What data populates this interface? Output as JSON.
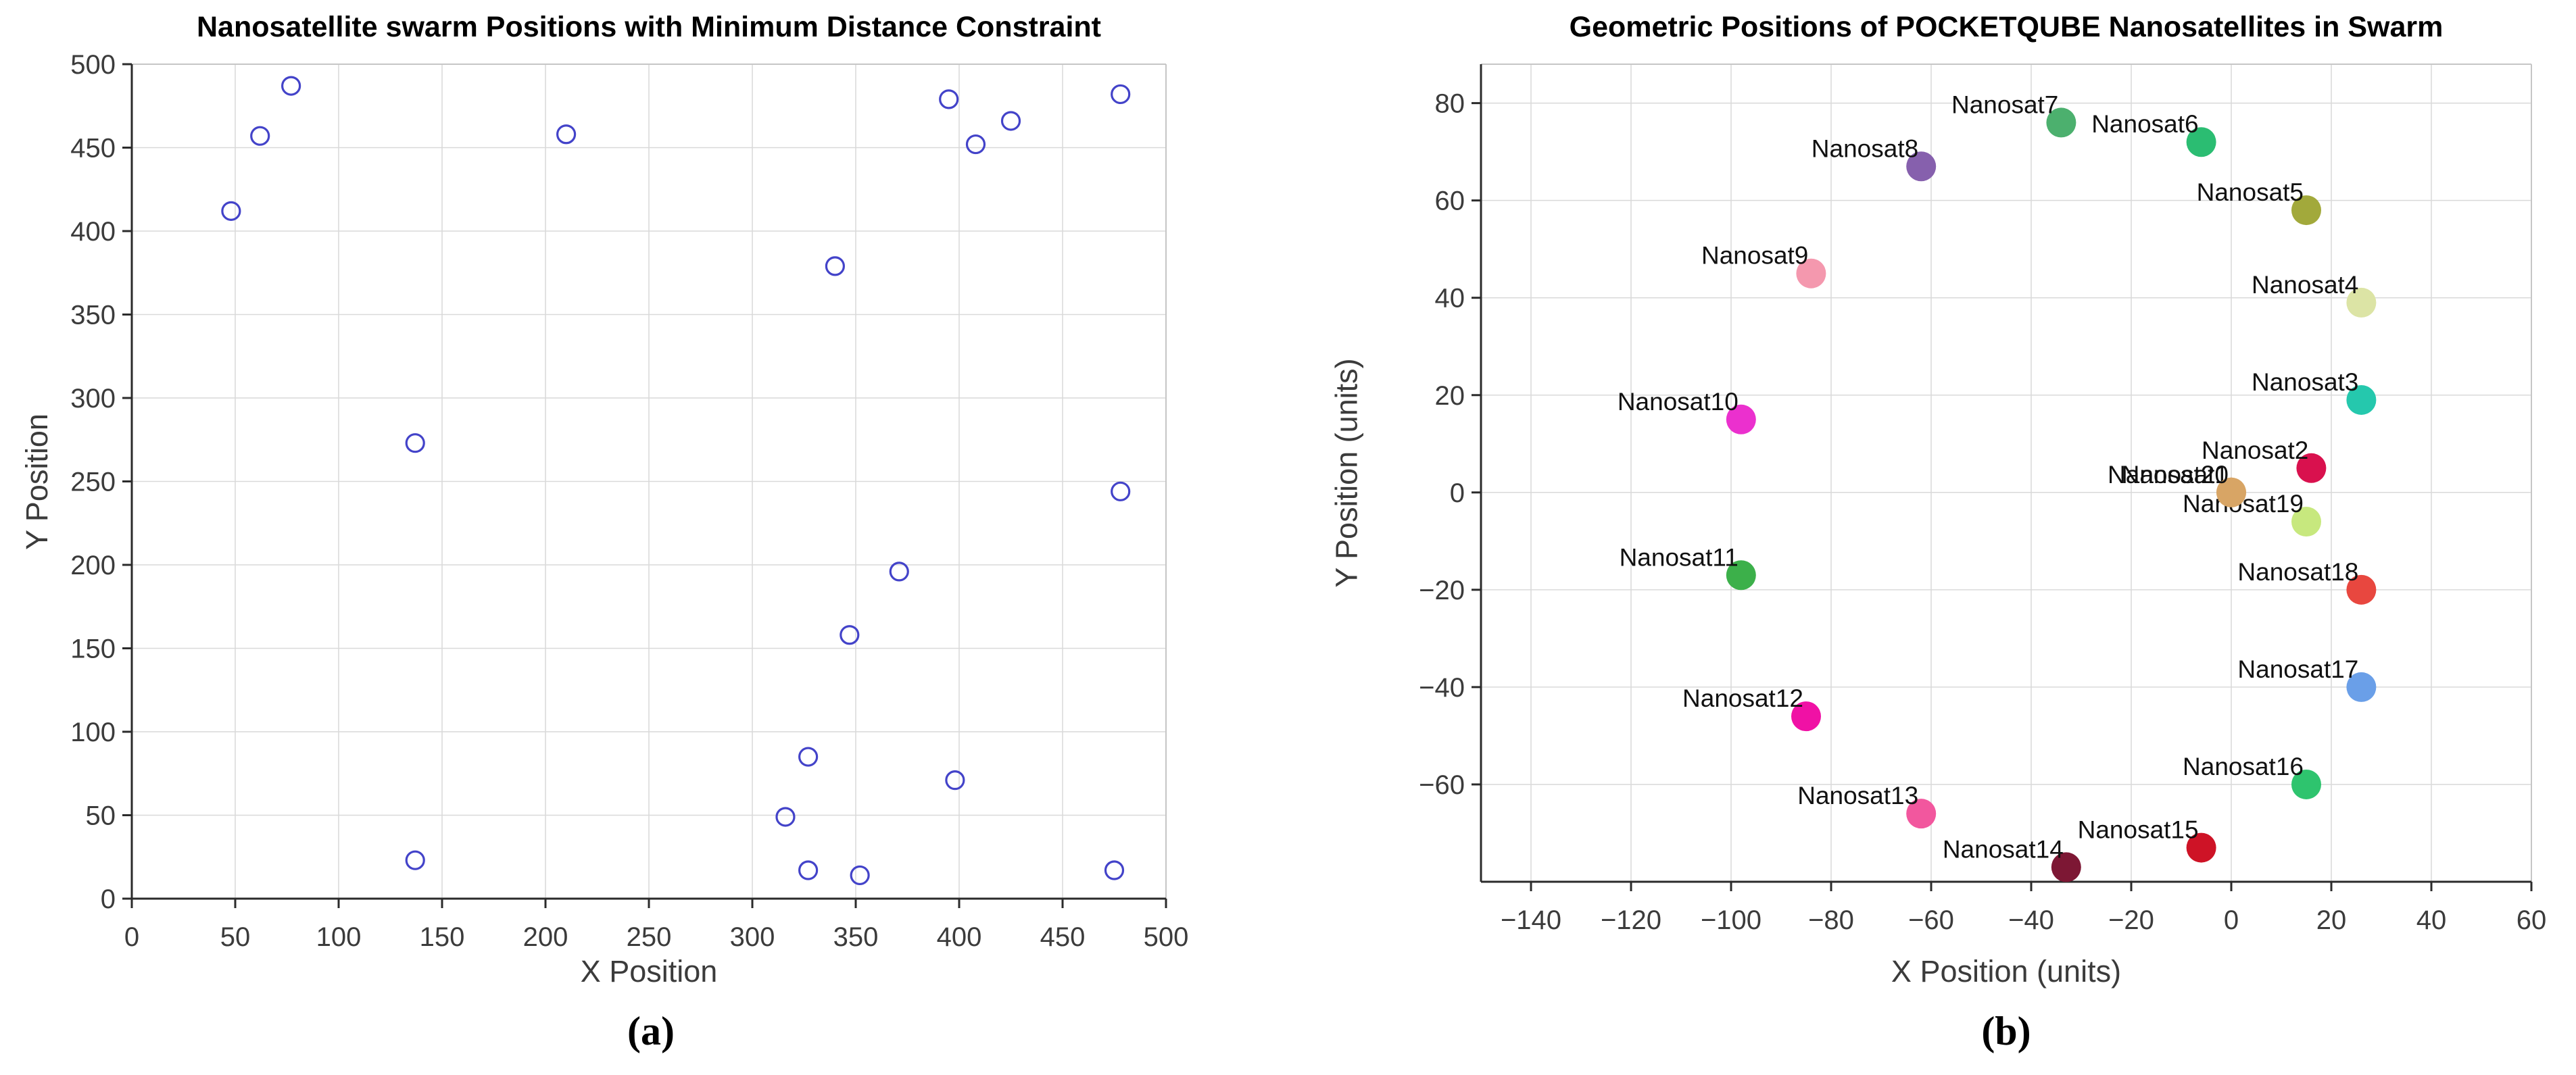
{
  "figure_caption_a": "(a)",
  "figure_caption_b": "(b)",
  "chart_data": [
    {
      "id": "a",
      "type": "scatter",
      "title": "Nanosatellite swarm Positions with Minimum Distance Constraint",
      "xlabel": "X Position",
      "ylabel": "Y Position",
      "caption": "(a)",
      "xlim": [
        0,
        500
      ],
      "ylim": [
        0,
        500
      ],
      "xticks": [
        0,
        50,
        100,
        150,
        200,
        250,
        300,
        350,
        400,
        450,
        500
      ],
      "yticks": [
        0,
        50,
        100,
        150,
        200,
        250,
        300,
        350,
        400,
        450,
        500
      ],
      "grid": true,
      "legend": "none",
      "marker": {
        "style": "open-circle",
        "color": "#4343C9"
      },
      "style": {
        "grid_color": "#D9D9D9",
        "axis_color": "#2B2B2B",
        "box_color": "#C6C6C6",
        "tick_label_color": "#3B3B3B"
      },
      "points": [
        [
          48,
          412
        ],
        [
          62,
          457
        ],
        [
          77,
          487
        ],
        [
          137,
          273
        ],
        [
          137,
          23
        ],
        [
          210,
          458
        ],
        [
          340,
          379
        ],
        [
          316,
          49
        ],
        [
          327,
          85
        ],
        [
          327,
          17
        ],
        [
          347,
          158
        ],
        [
          352,
          14
        ],
        [
          371,
          196
        ],
        [
          395,
          479
        ],
        [
          398,
          71
        ],
        [
          408,
          452
        ],
        [
          425,
          466
        ],
        [
          475,
          17
        ],
        [
          478,
          482
        ],
        [
          478,
          244
        ]
      ]
    },
    {
      "id": "b",
      "type": "scatter",
      "title": "Geometric Positions of POCKETQUBE Nanosatellites in Swarm",
      "xlabel": "X Position (units)",
      "ylabel": "Y Position (units)",
      "caption": "(b)",
      "xlim": [
        -150,
        60
      ],
      "ylim": [
        -80,
        88
      ],
      "xticks": [
        -140,
        -120,
        -100,
        -80,
        -60,
        -40,
        -20,
        0,
        20,
        40,
        60
      ],
      "yticks": [
        -60,
        -40,
        -20,
        0,
        20,
        40,
        60,
        80
      ],
      "grid": true,
      "legend": "none",
      "style": {
        "grid_color": "#D9D9D9",
        "axis_color": "#2B2B2B",
        "box_color": "#C6C6C6",
        "tick_label_color": "#3B3B3B"
      },
      "satellites": [
        {
          "label": "Nanosat1",
          "x": 0,
          "y": 0,
          "color": "#D8A565"
        },
        {
          "label": "Nanosat2",
          "x": 16,
          "y": 5,
          "color": "#D9114E"
        },
        {
          "label": "Nanosat3",
          "x": 26,
          "y": 19,
          "color": "#25C8AD"
        },
        {
          "label": "Nanosat4",
          "x": 26,
          "y": 39,
          "color": "#DCE4A5"
        },
        {
          "label": "Nanosat5",
          "x": 15,
          "y": 58,
          "color": "#A2A93B"
        },
        {
          "label": "Nanosat6",
          "x": -6,
          "y": 72,
          "color": "#2BBD72"
        },
        {
          "label": "Nanosat7",
          "x": -34,
          "y": 76,
          "color": "#4CB06E"
        },
        {
          "label": "Nanosat8",
          "x": -62,
          "y": 67,
          "color": "#8660AD"
        },
        {
          "label": "Nanosat9",
          "x": -84,
          "y": 45,
          "color": "#F498AE"
        },
        {
          "label": "Nanosat10",
          "x": -98,
          "y": 15,
          "color": "#EB30CE"
        },
        {
          "label": "Nanosat11",
          "x": -98,
          "y": -17,
          "color": "#3CB04A"
        },
        {
          "label": "Nanosat12",
          "x": -85,
          "y": -46,
          "color": "#F011A5"
        },
        {
          "label": "Nanosat13",
          "x": -62,
          "y": -66,
          "color": "#F2579E"
        },
        {
          "label": "Nanosat14",
          "x": -33,
          "y": -77,
          "color": "#7D1734"
        },
        {
          "label": "Nanosat15",
          "x": -6,
          "y": -73,
          "color": "#CE1326"
        },
        {
          "label": "Nanosat16",
          "x": 15,
          "y": -60,
          "color": "#2EC46E"
        },
        {
          "label": "Nanosat17",
          "x": 26,
          "y": -40,
          "color": "#6A9FE8"
        },
        {
          "label": "Nanosat18",
          "x": 26,
          "y": -20,
          "color": "#E8473F"
        },
        {
          "label": "Nanosat19",
          "x": 15,
          "y": -6,
          "color": "#C7E87E"
        },
        {
          "label": "Nanosat20",
          "x": 0,
          "y": 0,
          "color": "#D8A565"
        }
      ]
    }
  ]
}
